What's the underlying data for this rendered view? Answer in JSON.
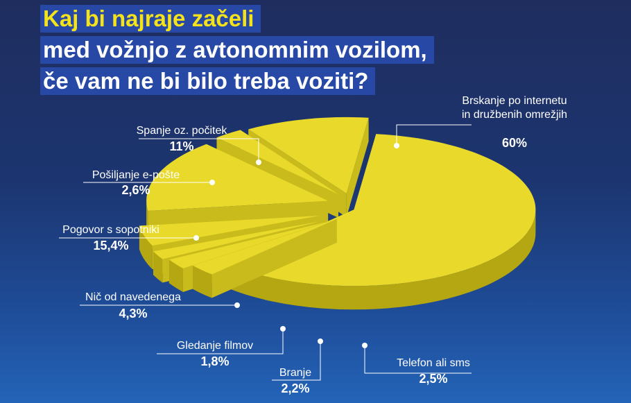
{
  "title": {
    "line1": "Kaj bi najraje začeli",
    "line2": "med vožnjo z avtonomnim vozilom,",
    "line3": "če vam ne bi bilo treba voziti?"
  },
  "colors": {
    "slice_top": "#e8d92a",
    "slice_side": "#b5a712",
    "title_highlight": "#2748a4",
    "title_accent": "#f4e21a"
  },
  "chart_data": {
    "type": "pie",
    "title": "Kaj bi najraje začeli med vožnjo z avtonomnim vozilom, če vam ne bi bilo treba voziti?",
    "slices": [
      {
        "label": "Brskanje po internetu in družbenih omrežjih",
        "label_lines": [
          "Brskanje po internetu",
          "in družbenih omrežjih"
        ],
        "value": 60,
        "value_text": "60%"
      },
      {
        "label": "Telefon ali sms",
        "label_lines": [
          "Telefon ali sms"
        ],
        "value": 2.5,
        "value_text": "2,5%"
      },
      {
        "label": "Branje",
        "label_lines": [
          "Branje"
        ],
        "value": 2.2,
        "value_text": "2,2%"
      },
      {
        "label": "Gledanje filmov",
        "label_lines": [
          "Gledanje filmov"
        ],
        "value": 1.8,
        "value_text": "1,8%"
      },
      {
        "label": "Nič od navedenega",
        "label_lines": [
          "Nič od navedenega"
        ],
        "value": 4.3,
        "value_text": "4,3%"
      },
      {
        "label": "Pogovor s sopotniki",
        "label_lines": [
          "Pogovor s sopotniki"
        ],
        "value": 15.4,
        "value_text": "15,4%"
      },
      {
        "label": "Pošiljanje e-pošte",
        "label_lines": [
          "Pošiljanje e-pošte"
        ],
        "value": 2.6,
        "value_text": "2,6%"
      },
      {
        "label": "Spanje oz. počitek",
        "label_lines": [
          "Spanje oz. počitek"
        ],
        "value": 11,
        "value_text": "11%"
      }
    ]
  }
}
